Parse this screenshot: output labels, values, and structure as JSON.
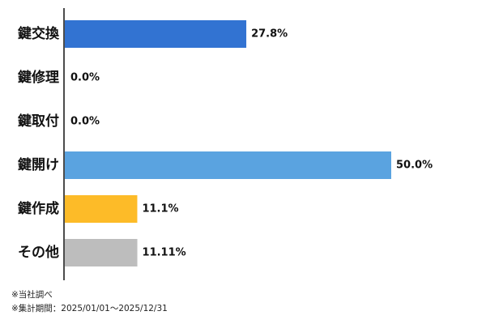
{
  "chart_data": {
    "type": "bar",
    "orientation": "horizontal",
    "categories": [
      "鍵交換",
      "鍵修理",
      "鍵取付",
      "鍵開け",
      "鍵作成",
      "その他"
    ],
    "values": [
      27.8,
      0.0,
      0.0,
      50.0,
      11.1,
      11.11
    ],
    "value_labels": [
      "27.8%",
      "0.0%",
      "0.0%",
      "50.0%",
      "11.1%",
      "11.11%"
    ],
    "colors": [
      "#3273D2",
      "#3273D2",
      "#3273D2",
      "#5AA3E0",
      "#FDBB28",
      "#BDBDBD"
    ],
    "xlim": [
      0,
      50
    ],
    "grid": false,
    "legend": "none"
  },
  "notes": [
    "※当社調べ",
    "※集計期間：2025/01/01〜2025/12/31"
  ]
}
